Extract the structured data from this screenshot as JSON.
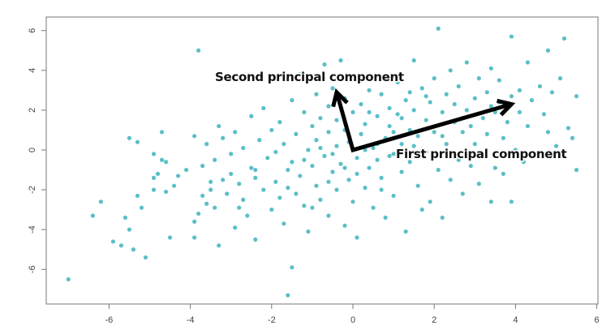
{
  "chart_data": {
    "type": "scatter",
    "title": "",
    "xlabel": "",
    "ylabel": "",
    "xlim": [
      -7.4,
      6.05
    ],
    "ylim": [
      -7.8,
      6.6
    ],
    "xticks": [
      "-6",
      "-4",
      "-2",
      "0",
      "2",
      "4",
      "6"
    ],
    "yticks": [
      "-6",
      "-4",
      "-2",
      "0",
      "2",
      "4",
      "6"
    ],
    "grid": false,
    "point_color": "#5bbfc6",
    "annotations": [
      {
        "label": "Second principal component",
        "arrow_from": [
          0,
          0
        ],
        "arrow_to": [
          -0.4,
          2.9
        ]
      },
      {
        "label": "First principal component",
        "arrow_from": [
          0,
          0
        ],
        "arrow_to": [
          3.9,
          2.3
        ]
      }
    ],
    "points": [
      [
        -7.0,
        -6.5
      ],
      [
        -6.4,
        -3.3
      ],
      [
        -6.2,
        -2.6
      ],
      [
        -5.9,
        -4.6
      ],
      [
        -5.7,
        -4.8
      ],
      [
        -5.6,
        -3.4
      ],
      [
        -5.5,
        0.6
      ],
      [
        -5.5,
        -4.0
      ],
      [
        -5.4,
        -5.0
      ],
      [
        -5.3,
        -2.3
      ],
      [
        -5.3,
        0.4
      ],
      [
        -5.2,
        -2.9
      ],
      [
        -5.1,
        -5.4
      ],
      [
        -4.9,
        -0.2
      ],
      [
        -4.9,
        -2.0
      ],
      [
        -4.9,
        -1.4
      ],
      [
        -4.8,
        -1.2
      ],
      [
        -4.7,
        -0.5
      ],
      [
        -4.7,
        0.9
      ],
      [
        -4.6,
        -0.6
      ],
      [
        -4.6,
        -2.1
      ],
      [
        -4.5,
        -4.4
      ],
      [
        -4.4,
        -1.8
      ],
      [
        -4.3,
        -1.3
      ],
      [
        -4.1,
        -1.0
      ],
      [
        -3.9,
        -4.4
      ],
      [
        -3.9,
        -3.6
      ],
      [
        -3.9,
        0.7
      ],
      [
        -3.8,
        5.0
      ],
      [
        -3.8,
        -3.2
      ],
      [
        -3.7,
        -0.8
      ],
      [
        -3.7,
        -2.3
      ],
      [
        -3.6,
        0.3
      ],
      [
        -3.6,
        -2.7
      ],
      [
        -3.5,
        -2.0
      ],
      [
        -3.5,
        -1.6
      ],
      [
        -3.4,
        -2.9
      ],
      [
        -3.4,
        -0.5
      ],
      [
        -3.3,
        1.2
      ],
      [
        -3.3,
        -4.8
      ],
      [
        -3.2,
        0.6
      ],
      [
        -3.1,
        -2.2
      ],
      [
        -3.0,
        -1.2
      ],
      [
        -3.0,
        -0.2
      ],
      [
        -2.9,
        -3.9
      ],
      [
        -2.9,
        0.9
      ],
      [
        -2.8,
        -1.7
      ],
      [
        -2.7,
        -2.5
      ],
      [
        -2.7,
        0.1
      ],
      [
        -2.6,
        -3.3
      ],
      [
        -2.5,
        1.7
      ],
      [
        -2.5,
        -0.9
      ],
      [
        -2.4,
        -1.4
      ],
      [
        -2.4,
        -4.5
      ],
      [
        -2.3,
        0.5
      ],
      [
        -2.2,
        -2.0
      ],
      [
        -2.2,
        2.1
      ],
      [
        -2.1,
        -0.4
      ],
      [
        -2.0,
        -3.0
      ],
      [
        -2.0,
        1.0
      ],
      [
        -1.9,
        -1.6
      ],
      [
        -1.9,
        -0.1
      ],
      [
        -1.8,
        -2.4
      ],
      [
        -1.8,
        1.4
      ],
      [
        -1.7,
        0.3
      ],
      [
        -1.7,
        -3.7
      ],
      [
        -1.6,
        -7.3
      ],
      [
        -1.6,
        -1.0
      ],
      [
        -1.5,
        -5.9
      ],
      [
        -1.5,
        2.5
      ],
      [
        -1.5,
        -0.6
      ],
      [
        -1.4,
        -2.2
      ],
      [
        -1.4,
        0.8
      ],
      [
        -1.3,
        -1.3
      ],
      [
        -1.3,
        3.8
      ],
      [
        -1.2,
        1.9
      ],
      [
        -1.2,
        -2.8
      ],
      [
        -1.1,
        0.0
      ],
      [
        -1.1,
        -4.1
      ],
      [
        -1.0,
        -0.8
      ],
      [
        -1.0,
        1.2
      ],
      [
        -0.9,
        2.8
      ],
      [
        -0.9,
        -1.8
      ],
      [
        -0.9,
        0.5
      ],
      [
        -0.8,
        -2.5
      ],
      [
        -0.8,
        1.6
      ],
      [
        -0.7,
        -0.3
      ],
      [
        -0.7,
        4.3
      ],
      [
        -0.6,
        -3.3
      ],
      [
        -0.6,
        2.2
      ],
      [
        -0.6,
        0.9
      ],
      [
        -0.5,
        -1.1
      ],
      [
        -0.5,
        3.1
      ],
      [
        -0.4,
        -2.0
      ],
      [
        -0.4,
        0.2
      ],
      [
        -0.4,
        1.5
      ],
      [
        -0.3,
        -0.7
      ],
      [
        -0.3,
        4.5
      ],
      [
        -0.2,
        -3.8
      ],
      [
        -0.2,
        2.6
      ],
      [
        -0.2,
        1.0
      ],
      [
        -0.1,
        -1.5
      ],
      [
        -0.1,
        0.4
      ],
      [
        0.0,
        -2.6
      ],
      [
        0.0,
        1.9
      ],
      [
        0.0,
        3.5
      ],
      [
        0.1,
        -0.4
      ],
      [
        0.1,
        -4.4
      ],
      [
        0.2,
        0.8
      ],
      [
        0.2,
        2.3
      ],
      [
        0.3,
        -1.9
      ],
      [
        0.3,
        1.3
      ],
      [
        0.4,
        -0.9
      ],
      [
        0.4,
        3.0
      ],
      [
        0.5,
        0.1
      ],
      [
        0.5,
        -2.9
      ],
      [
        0.6,
        1.7
      ],
      [
        0.6,
        -0.5
      ],
      [
        0.7,
        2.8
      ],
      [
        0.7,
        -1.4
      ],
      [
        0.8,
        0.6
      ],
      [
        0.8,
        -3.4
      ],
      [
        0.9,
        1.2
      ],
      [
        0.9,
        2.1
      ],
      [
        1.0,
        -0.2
      ],
      [
        1.0,
        -2.3
      ],
      [
        1.1,
        1.8
      ],
      [
        1.1,
        3.4
      ],
      [
        1.2,
        0.3
      ],
      [
        1.2,
        -1.1
      ],
      [
        1.3,
        2.5
      ],
      [
        1.3,
        -4.1
      ],
      [
        1.4,
        1.0
      ],
      [
        1.4,
        -0.6
      ],
      [
        1.5,
        4.5
      ],
      [
        1.5,
        2.0
      ],
      [
        1.6,
        -1.8
      ],
      [
        1.6,
        0.7
      ],
      [
        1.7,
        3.1
      ],
      [
        1.7,
        -3.0
      ],
      [
        1.8,
        1.5
      ],
      [
        1.8,
        -0.1
      ],
      [
        1.9,
        2.4
      ],
      [
        1.9,
        -2.6
      ],
      [
        2.0,
        0.9
      ],
      [
        2.0,
        3.6
      ],
      [
        2.1,
        6.1
      ],
      [
        2.1,
        -1.0
      ],
      [
        2.2,
        1.9
      ],
      [
        2.2,
        -3.4
      ],
      [
        2.3,
        2.8
      ],
      [
        2.3,
        0.3
      ],
      [
        2.4,
        4.0
      ],
      [
        2.4,
        -1.5
      ],
      [
        2.5,
        1.4
      ],
      [
        2.5,
        2.3
      ],
      [
        2.6,
        -0.5
      ],
      [
        2.6,
        3.2
      ],
      [
        2.7,
        0.9
      ],
      [
        2.7,
        -2.2
      ],
      [
        2.8,
        2.0
      ],
      [
        2.8,
        4.4
      ],
      [
        2.9,
        1.2
      ],
      [
        2.9,
        -0.8
      ],
      [
        3.0,
        2.6
      ],
      [
        3.0,
        0.3
      ],
      [
        3.1,
        3.6
      ],
      [
        3.1,
        -1.7
      ],
      [
        3.2,
        1.6
      ],
      [
        3.2,
        -0.2
      ],
      [
        3.3,
        2.9
      ],
      [
        3.3,
        0.8
      ],
      [
        3.4,
        4.1
      ],
      [
        3.4,
        -2.6
      ],
      [
        3.5,
        1.9
      ],
      [
        3.5,
        -0.9
      ],
      [
        3.6,
        2.4
      ],
      [
        3.6,
        3.5
      ],
      [
        3.7,
        0.6
      ],
      [
        3.7,
        -1.2
      ],
      [
        3.8,
        1.4
      ],
      [
        3.9,
        5.7
      ],
      [
        3.9,
        2.7
      ],
      [
        3.9,
        -2.6
      ],
      [
        4.0,
        0.0
      ],
      [
        4.1,
        3.0
      ],
      [
        4.1,
        1.9
      ],
      [
        4.2,
        -0.6
      ],
      [
        4.3,
        4.4
      ],
      [
        4.3,
        1.2
      ],
      [
        4.4,
        2.5
      ],
      [
        4.5,
        -0.3
      ],
      [
        4.6,
        3.2
      ],
      [
        4.7,
        1.8
      ],
      [
        4.8,
        0.9
      ],
      [
        4.8,
        5.0
      ],
      [
        4.9,
        2.9
      ],
      [
        5.0,
        0.2
      ],
      [
        5.1,
        3.6
      ],
      [
        5.2,
        5.6
      ],
      [
        5.3,
        1.1
      ],
      [
        5.4,
        0.6
      ],
      [
        5.5,
        2.7
      ],
      [
        5.5,
        -1.0
      ],
      [
        0.3,
        0.0
      ],
      [
        -0.5,
        -0.2
      ],
      [
        0.9,
        -0.3
      ],
      [
        1.5,
        0.2
      ],
      [
        -1.2,
        -0.5
      ],
      [
        0.6,
        0.3
      ],
      [
        1.2,
        1.6
      ],
      [
        -0.2,
        -0.9
      ],
      [
        2.2,
        0.7
      ],
      [
        0.4,
        1.9
      ],
      [
        -0.8,
        0.1
      ],
      [
        1.8,
        2.7
      ],
      [
        -1.6,
        -1.9
      ],
      [
        -2.4,
        -1.0
      ],
      [
        -0.6,
        -1.6
      ],
      [
        0.1,
        -1.2
      ],
      [
        2.7,
        1.6
      ],
      [
        3.4,
        2.2
      ],
      [
        1.0,
        0.9
      ],
      [
        -1.0,
        -2.9
      ],
      [
        -2.8,
        -2.9
      ],
      [
        -3.2,
        -1.5
      ],
      [
        0.7,
        -2.0
      ],
      [
        1.4,
        2.9
      ]
    ]
  }
}
